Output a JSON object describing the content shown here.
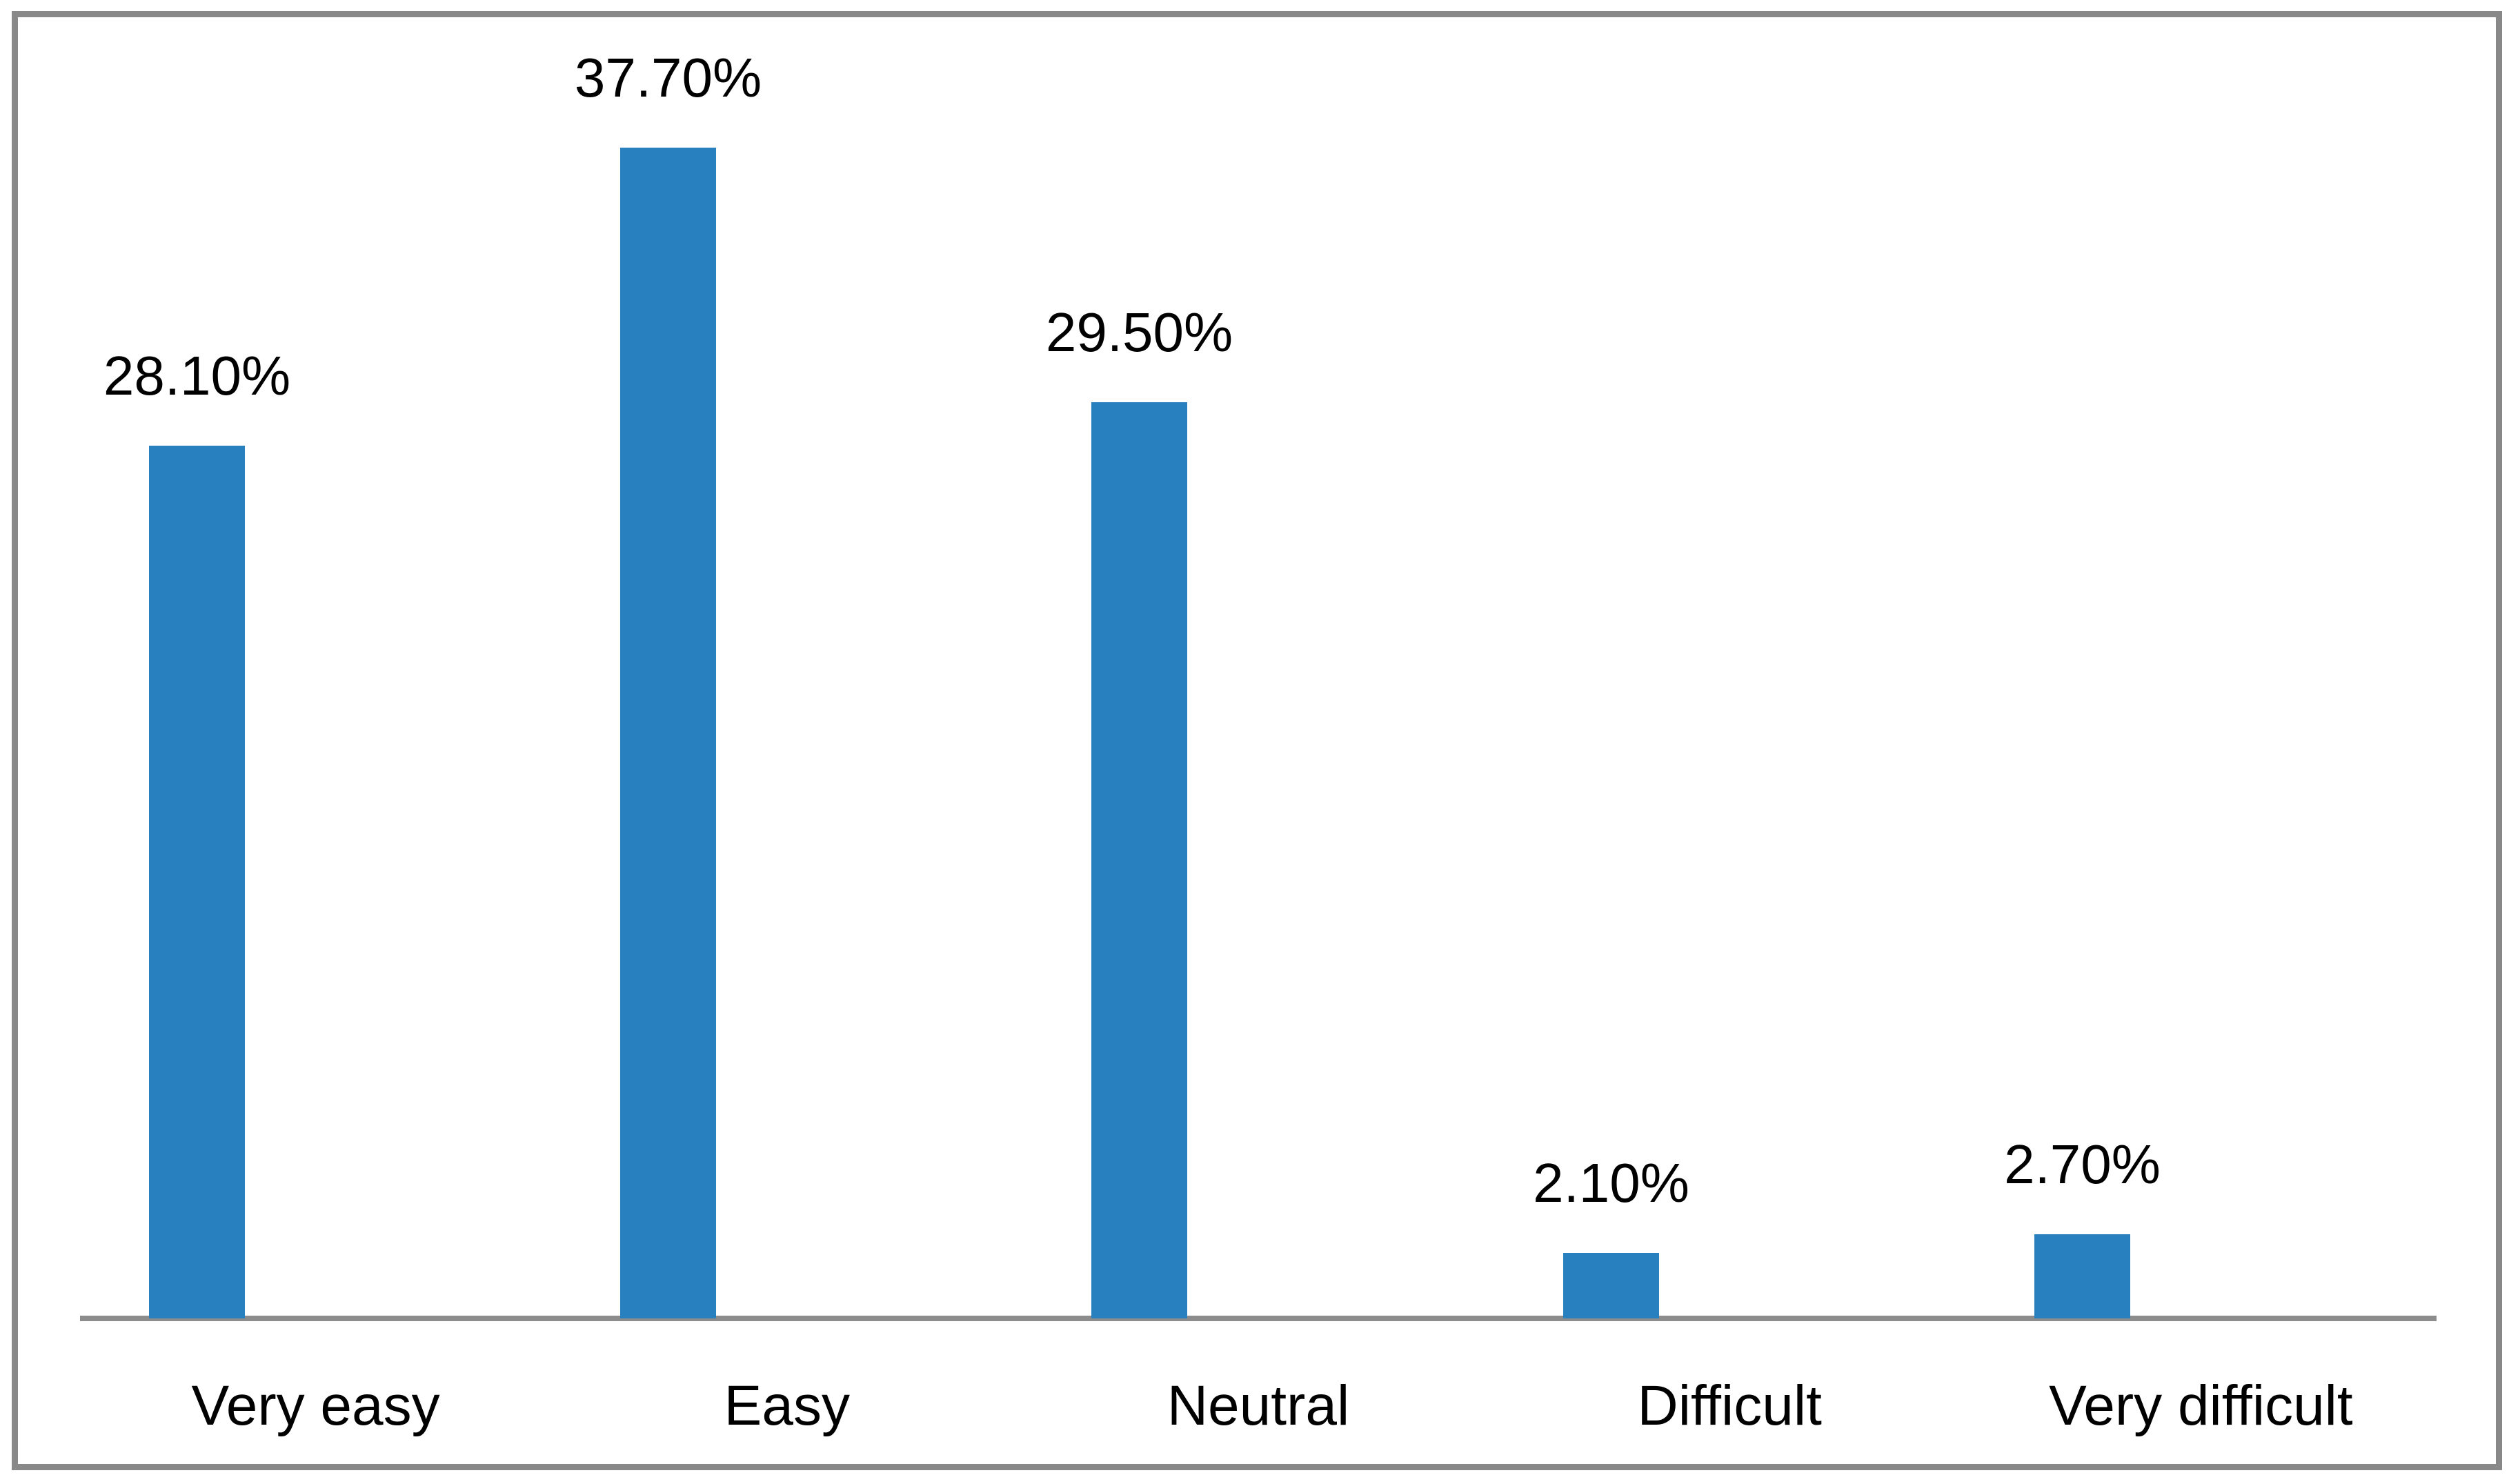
{
  "chart_data": {
    "type": "bar",
    "title": "",
    "xlabel": "",
    "ylabel": "",
    "categories": [
      "Very easy",
      "Easy",
      "Neutral",
      "Difficult",
      "Very difficult"
    ],
    "values": [
      28.1,
      37.7,
      29.5,
      2.1,
      2.7
    ],
    "data_labels": [
      "28.10%",
      "37.70%",
      "29.50%",
      "2.10%",
      "2.70%"
    ],
    "ylim": [
      0,
      40
    ],
    "grid": false,
    "legend": false,
    "y_axis_visible": false,
    "colors": {
      "bar": "#2880BE",
      "axis_line": "#8C8C8C",
      "frame_border": "#898989",
      "label_text": "#000000",
      "background": "#ffffff"
    }
  }
}
